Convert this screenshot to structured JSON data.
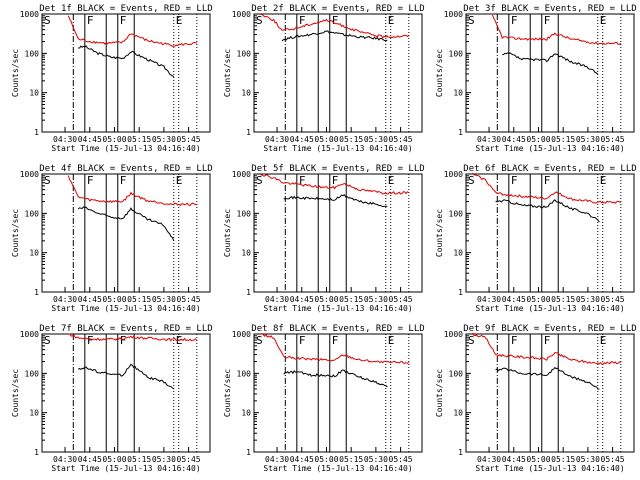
{
  "chart_data": [
    {
      "type": "line",
      "title": "Det 1f BLACK = Events, RED = LLD",
      "xlabel": "Start Time (15-Jul-13 04:16:40)",
      "ylabel": "Counts/sec",
      "yscale": "log",
      "ylim": [
        1,
        1000
      ],
      "xticks": [
        "04:30",
        "04:45",
        "05:00",
        "05:15",
        "05:30",
        "05:45"
      ],
      "yticks": [
        "1",
        "10",
        "100",
        "1000"
      ],
      "markers": [
        "S",
        "F",
        "F",
        "E"
      ],
      "series": [
        {
          "name": "BLACK = Events",
          "color": "#000000",
          "x": [
            "04:38",
            "04:42",
            "04:50",
            "04:58",
            "05:05",
            "05:10",
            "05:20",
            "05:30",
            "05:36"
          ],
          "values": [
            140,
            150,
            100,
            80,
            75,
            110,
            70,
            45,
            25
          ]
        },
        {
          "name": "RED = LLD",
          "color": "#dd0000",
          "x": [
            "04:32",
            "04:38",
            "04:45",
            "04:55",
            "05:05",
            "05:10",
            "05:20",
            "05:35",
            "05:50"
          ],
          "values": [
            900,
            230,
            200,
            180,
            190,
            320,
            210,
            160,
            180
          ]
        }
      ]
    },
    {
      "type": "line",
      "title": "Det 2f BLACK = Events, RED = LLD",
      "xlabel": "Start Time (15-Jul-13 04:16:40)",
      "ylabel": "Counts/sec",
      "yscale": "log",
      "ylim": [
        1,
        1000
      ],
      "xticks": [
        "04:30",
        "04:45",
        "05:00",
        "05:15",
        "05:30",
        "05:45"
      ],
      "yticks": [
        "1",
        "10",
        "100",
        "1000"
      ],
      "markers": [
        "S",
        "F",
        "F",
        "E"
      ],
      "series": [
        {
          "name": "BLACK = Events",
          "color": "#000000",
          "x": [
            "04:33",
            "04:40",
            "04:50",
            "05:00",
            "05:10",
            "05:20",
            "05:30",
            "05:37"
          ],
          "values": [
            220,
            260,
            300,
            360,
            300,
            260,
            240,
            220
          ]
        },
        {
          "name": "RED = LLD",
          "color": "#dd0000",
          "x": [
            "04:20",
            "04:28",
            "04:33",
            "04:40",
            "04:50",
            "05:00",
            "05:10",
            "05:20",
            "05:35",
            "05:50"
          ],
          "values": [
            1000,
            700,
            380,
            420,
            550,
            700,
            500,
            350,
            260,
            280
          ]
        }
      ]
    },
    {
      "type": "line",
      "title": "Det 3f BLACK = Events, RED = LLD",
      "xlabel": "Start Time (15-Jul-13 04:16:40)",
      "ylabel": "Counts/sec",
      "yscale": "log",
      "ylim": [
        1,
        1000
      ],
      "xticks": [
        "04:30",
        "04:45",
        "05:00",
        "05:15",
        "05:30",
        "05:45"
      ],
      "yticks": [
        "1",
        "10",
        "100",
        "1000"
      ],
      "markers": [
        "S",
        "F",
        "F",
        "E"
      ],
      "series": [
        {
          "name": "BLACK = Events",
          "color": "#000000",
          "x": [
            "04:38",
            "04:42",
            "04:50",
            "04:58",
            "05:05",
            "05:10",
            "05:20",
            "05:30",
            "05:36"
          ],
          "values": [
            90,
            100,
            70,
            70,
            65,
            100,
            60,
            45,
            30
          ]
        },
        {
          "name": "RED = LLD",
          "color": "#dd0000",
          "x": [
            "04:32",
            "04:38",
            "04:45",
            "04:55",
            "05:05",
            "05:10",
            "05:20",
            "05:35",
            "05:50"
          ],
          "values": [
            900,
            260,
            240,
            230,
            230,
            320,
            230,
            180,
            180
          ]
        }
      ]
    },
    {
      "type": "line",
      "title": "Det 4f BLACK = Events, RED = LLD",
      "xlabel": "Start Time (15-Jul-13 04:16:40)",
      "ylabel": "Counts/sec",
      "yscale": "log",
      "ylim": [
        1,
        1000
      ],
      "xticks": [
        "04:30",
        "04:45",
        "05:00",
        "05:15",
        "05:30",
        "05:45"
      ],
      "yticks": [
        "1",
        "10",
        "100",
        "1000"
      ],
      "markers": [
        "S",
        "F",
        "F",
        "E"
      ],
      "series": [
        {
          "name": "BLACK = Events",
          "color": "#000000",
          "x": [
            "04:38",
            "04:42",
            "04:50",
            "04:58",
            "05:05",
            "05:10",
            "05:20",
            "05:30",
            "05:36"
          ],
          "values": [
            130,
            140,
            100,
            80,
            75,
            130,
            70,
            50,
            20
          ]
        },
        {
          "name": "RED = LLD",
          "color": "#dd0000",
          "x": [
            "04:32",
            "04:38",
            "04:45",
            "04:55",
            "05:05",
            "05:10",
            "05:20",
            "05:35",
            "05:50"
          ],
          "values": [
            900,
            260,
            220,
            200,
            200,
            320,
            210,
            170,
            170
          ]
        }
      ]
    },
    {
      "type": "line",
      "title": "Det 5f BLACK = Events, RED = LLD",
      "xlabel": "Start Time (15-Jul-13 04:16:40)",
      "ylabel": "Counts/sec",
      "yscale": "log",
      "ylim": [
        1,
        1000
      ],
      "xticks": [
        "04:30",
        "04:45",
        "05:00",
        "05:15",
        "05:30",
        "05:45"
      ],
      "yticks": [
        "1",
        "10",
        "100",
        "1000"
      ],
      "markers": [
        "S",
        "F",
        "F",
        "E"
      ],
      "series": [
        {
          "name": "BLACK = Events",
          "color": "#000000",
          "x": [
            "04:34",
            "04:42",
            "04:50",
            "05:00",
            "05:05",
            "05:10",
            "05:20",
            "05:30",
            "05:37"
          ],
          "values": [
            250,
            250,
            240,
            230,
            220,
            290,
            200,
            170,
            150
          ]
        },
        {
          "name": "RED = LLD",
          "color": "#dd0000",
          "x": [
            "04:20",
            "04:28",
            "04:34",
            "04:42",
            "04:50",
            "05:00",
            "05:05",
            "05:10",
            "05:20",
            "05:35",
            "05:50"
          ],
          "values": [
            1000,
            800,
            600,
            550,
            500,
            450,
            450,
            580,
            400,
            330,
            330
          ]
        }
      ]
    },
    {
      "type": "line",
      "title": "Det 6f BLACK = Events, RED = LLD",
      "xlabel": "Start Time (15-Jul-13 04:16:40)",
      "ylabel": "Counts/sec",
      "yscale": "log",
      "ylim": [
        1,
        1000
      ],
      "xticks": [
        "04:30",
        "04:45",
        "05:00",
        "05:15",
        "05:30",
        "05:45"
      ],
      "yticks": [
        "1",
        "10",
        "100",
        "1000"
      ],
      "markers": [
        "S",
        "F",
        "F",
        "E"
      ],
      "series": [
        {
          "name": "BLACK = Events",
          "color": "#000000",
          "x": [
            "04:34",
            "04:40",
            "04:50",
            "05:00",
            "05:05",
            "05:10",
            "05:20",
            "05:30",
            "05:37"
          ],
          "values": [
            200,
            210,
            160,
            150,
            140,
            220,
            130,
            100,
            60
          ]
        },
        {
          "name": "RED = LLD",
          "color": "#dd0000",
          "x": [
            "04:20",
            "04:28",
            "04:34",
            "04:40",
            "04:50",
            "05:00",
            "05:05",
            "05:10",
            "05:20",
            "05:35",
            "05:50"
          ],
          "values": [
            1000,
            700,
            330,
            300,
            270,
            250,
            240,
            350,
            230,
            190,
            190
          ]
        }
      ]
    },
    {
      "type": "line",
      "title": "Det 7f BLACK = Events, RED = LLD",
      "xlabel": "Start Time (15-Jul-13 04:16:40)",
      "ylabel": "Counts/sec",
      "yscale": "log",
      "ylim": [
        1,
        1000
      ],
      "xticks": [
        "04:30",
        "04:45",
        "05:00",
        "05:15",
        "05:30",
        "05:45"
      ],
      "yticks": [
        "1",
        "10",
        "100",
        "1000"
      ],
      "markers": [
        "S",
        "F",
        "F",
        "E"
      ],
      "series": [
        {
          "name": "BLACK = Events",
          "color": "#000000",
          "x": [
            "04:38",
            "04:42",
            "04:50",
            "04:58",
            "05:05",
            "05:10",
            "05:20",
            "05:30",
            "05:36"
          ],
          "values": [
            130,
            140,
            110,
            95,
            90,
            170,
            80,
            60,
            40
          ]
        },
        {
          "name": "RED = LLD",
          "color": "#dd0000",
          "x": [
            "04:32",
            "04:38",
            "04:45",
            "04:55",
            "05:05",
            "05:10",
            "05:20",
            "05:35",
            "05:50"
          ],
          "values": [
            1000,
            800,
            750,
            730,
            760,
            850,
            780,
            720,
            720
          ]
        }
      ]
    },
    {
      "type": "line",
      "title": "Det 8f BLACK = Events, RED = LLD",
      "xlabel": "Start Time (15-Jul-13 04:16:40)",
      "ylabel": "Counts/sec",
      "yscale": "log",
      "ylim": [
        1,
        1000
      ],
      "xticks": [
        "04:30",
        "04:45",
        "05:00",
        "05:15",
        "05:30",
        "05:45"
      ],
      "yticks": [
        "1",
        "10",
        "100",
        "1000"
      ],
      "markers": [
        "S",
        "F",
        "F",
        "E"
      ],
      "series": [
        {
          "name": "BLACK = Events",
          "color": "#000000",
          "x": [
            "04:34",
            "04:42",
            "04:50",
            "05:00",
            "05:05",
            "05:10",
            "05:20",
            "05:30",
            "05:37"
          ],
          "values": [
            100,
            110,
            90,
            90,
            85,
            120,
            80,
            60,
            45
          ]
        },
        {
          "name": "RED = LLD",
          "color": "#dd0000",
          "x": [
            "04:20",
            "04:28",
            "04:34",
            "04:42",
            "04:50",
            "05:00",
            "05:05",
            "05:10",
            "05:20",
            "05:35",
            "05:50"
          ],
          "values": [
            1000,
            800,
            260,
            240,
            230,
            220,
            210,
            300,
            220,
            190,
            190
          ]
        }
      ]
    },
    {
      "type": "line",
      "title": "Det 9f BLACK = Events, RED = LLD",
      "xlabel": "Start Time (15-Jul-13 04:16:40)",
      "ylabel": "Counts/sec",
      "yscale": "log",
      "ylim": [
        1,
        1000
      ],
      "xticks": [
        "04:30",
        "04:45",
        "05:00",
        "05:15",
        "05:30",
        "05:45"
      ],
      "yticks": [
        "1",
        "10",
        "100",
        "1000"
      ],
      "markers": [
        "S",
        "F",
        "F",
        "E"
      ],
      "series": [
        {
          "name": "BLACK = Events",
          "color": "#000000",
          "x": [
            "04:34",
            "04:40",
            "04:50",
            "05:00",
            "05:05",
            "05:10",
            "05:20",
            "05:30",
            "05:37"
          ],
          "values": [
            120,
            130,
            100,
            95,
            90,
            140,
            80,
            60,
            40
          ]
        },
        {
          "name": "RED = LLD",
          "color": "#dd0000",
          "x": [
            "04:20",
            "04:28",
            "04:34",
            "04:40",
            "04:50",
            "05:00",
            "05:05",
            "05:10",
            "05:20",
            "05:35",
            "05:50"
          ],
          "values": [
            1000,
            800,
            300,
            280,
            260,
            240,
            230,
            330,
            220,
            180,
            190
          ]
        }
      ]
    }
  ],
  "marker_times": {
    "row1": {
      "start": "04:35",
      "f1": "04:42",
      "f2": "04:55",
      "f3": "05:02",
      "f4": "05:12",
      "end": "05:36",
      "dotted": "05:39"
    },
    "row2": {
      "start": "04:35",
      "f1": "04:42",
      "f2": "04:55",
      "f3": "05:02",
      "f4": "05:12",
      "end": "05:36",
      "dotted": "05:39"
    },
    "row3": {
      "start": "04:35",
      "f1": "04:42",
      "f2": "04:55",
      "f3": "05:02",
      "f4": "05:12",
      "end": "05:36",
      "dotted": "05:39"
    }
  }
}
